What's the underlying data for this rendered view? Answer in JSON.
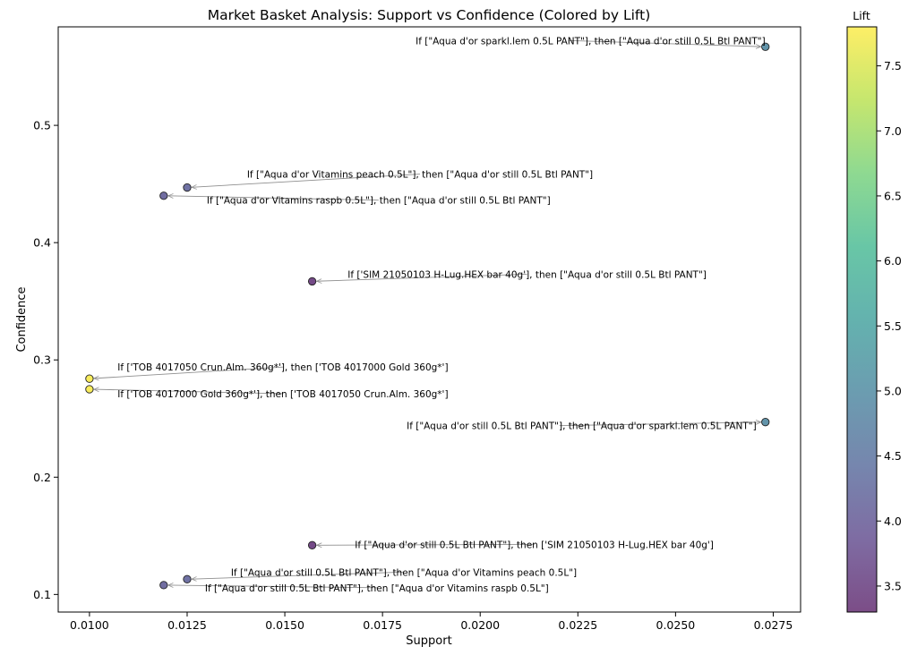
{
  "chart_data": {
    "type": "scatter",
    "title": "Market Basket Analysis: Support vs Confidence (Colored by Lift)",
    "xlabel": "Support",
    "ylabel": "Confidence",
    "xlim": [
      0.0092,
      0.0282
    ],
    "ylim": [
      0.085,
      0.584
    ],
    "x_ticks": [
      0.01,
      0.0125,
      0.015,
      0.0175,
      0.02,
      0.0225,
      0.025,
      0.0275
    ],
    "x_tick_labels": [
      "0.0100",
      "0.0125",
      "0.0150",
      "0.0175",
      "0.0200",
      "0.0225",
      "0.0250",
      "0.0275"
    ],
    "y_ticks": [
      0.1,
      0.2,
      0.3,
      0.4,
      0.5
    ],
    "y_tick_labels": [
      "0.1",
      "0.2",
      "0.3",
      "0.4",
      "0.5"
    ],
    "grid": false,
    "colorbar": {
      "label": "Lift",
      "colormap": "viridis",
      "alpha": 0.7,
      "range": [
        3.3,
        7.8
      ],
      "ticks": [
        3.5,
        4.0,
        4.5,
        5.0,
        5.5,
        6.0,
        6.5,
        7.0,
        7.5
      ],
      "tick_labels": [
        "3.5",
        "4.0",
        "4.5",
        "5.0",
        "5.5",
        "6.0",
        "6.5",
        "7.0",
        "7.5"
      ]
    },
    "points": [
      {
        "support": 0.0273,
        "confidence": 0.567,
        "lift": 4.95,
        "label": "If [\"Aqua d'or sparkl.lem 0.5L PANT\"], then [\"Aqua d'or still 0.5L Btl PANT\"]"
      },
      {
        "support": 0.0125,
        "confidence": 0.447,
        "lift": 4.2,
        "label": "If [\"Aqua d'or Vitamins peach 0.5L\"], then [\"Aqua d'or still 0.5L Btl PANT\"]"
      },
      {
        "support": 0.0119,
        "confidence": 0.44,
        "lift": 4.1,
        "label": "If [\"Aqua d'or Vitamins raspb 0.5L\"], then [\"Aqua d'or still 0.5L Btl PANT\"]"
      },
      {
        "support": 0.0157,
        "confidence": 0.367,
        "lift": 3.45,
        "label": "If ['SIM 21050103 H-Lug.HEX bar 40g'], then [\"Aqua d'or still 0.5L Btl PANT\"]"
      },
      {
        "support": 0.01,
        "confidence": 0.284,
        "lift": 7.75,
        "label": "If ['TOB 4017050 Crun.Alm. 360g*'], then ['TOB 4017000 Gold 360g*']"
      },
      {
        "support": 0.01,
        "confidence": 0.275,
        "lift": 7.75,
        "label": "If ['TOB 4017000 Gold 360g*'], then ['TOB 4017050 Crun.Alm. 360g*']"
      },
      {
        "support": 0.0273,
        "confidence": 0.247,
        "lift": 4.95,
        "label": "If [\"Aqua d'or still 0.5L Btl PANT\"], then [\"Aqua d'or sparkl.lem 0.5L PANT\"]"
      },
      {
        "support": 0.0157,
        "confidence": 0.142,
        "lift": 3.45,
        "label": "If [\"Aqua d'or still 0.5L Btl PANT\"], then ['SIM 21050103 H-Lug.HEX bar 40g']"
      },
      {
        "support": 0.0125,
        "confidence": 0.113,
        "lift": 4.2,
        "label": "If [\"Aqua d'or still 0.5L Btl PANT\"], then [\"Aqua d'or Vitamins peach 0.5L\"]"
      },
      {
        "support": 0.0119,
        "confidence": 0.108,
        "lift": 4.1,
        "label": "If [\"Aqua d'or still 0.5L Btl PANT\"], then [\"Aqua d'or Vitamins raspb 0.5L\"]"
      }
    ]
  }
}
